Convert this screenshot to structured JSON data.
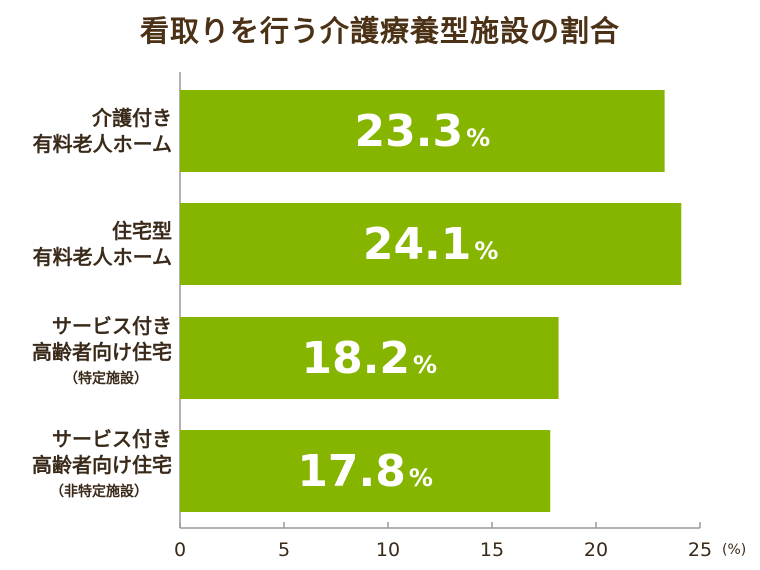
{
  "chart_data": {
    "type": "bar",
    "orientation": "horizontal",
    "title": "看取りを行う介護療養型施設の割合",
    "categories": [
      {
        "lines": [
          "介護付き",
          "有料老人ホーム"
        ],
        "sub": ""
      },
      {
        "lines": [
          "住宅型",
          "有料老人ホーム"
        ],
        "sub": ""
      },
      {
        "lines": [
          "サービス付き",
          "高齢者向け住宅"
        ],
        "sub": "（特定施設）"
      },
      {
        "lines": [
          "サービス付き",
          "高齢者向け住宅"
        ],
        "sub": "（非特定施設）"
      }
    ],
    "values": [
      23.3,
      24.1,
      18.2,
      17.8
    ],
    "value_suffix": "%",
    "xlim": [
      0,
      25
    ],
    "xticks": [
      "0",
      "5",
      "10",
      "15",
      "20",
      "25"
    ],
    "x_unit": "(%)",
    "bar_color": "#86b500",
    "grid": false
  }
}
